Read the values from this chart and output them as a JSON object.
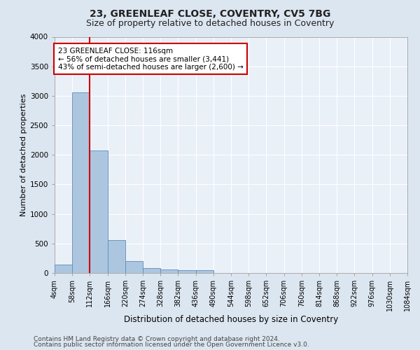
{
  "title1": "23, GREENLEAF CLOSE, COVENTRY, CV5 7BG",
  "title2": "Size of property relative to detached houses in Coventry",
  "xlabel": "Distribution of detached houses by size in Coventry",
  "ylabel": "Number of detached properties",
  "footnote1": "Contains HM Land Registry data © Crown copyright and database right 2024.",
  "footnote2": "Contains public sector information licensed under the Open Government Licence v3.0.",
  "bar_values": [
    140,
    3060,
    2070,
    560,
    200,
    80,
    55,
    45,
    45,
    0,
    0,
    0,
    0,
    0,
    0,
    0,
    0,
    0,
    0,
    0
  ],
  "tick_labels": [
    "4sqm",
    "58sqm",
    "112sqm",
    "166sqm",
    "220sqm",
    "274sqm",
    "328sqm",
    "382sqm",
    "436sqm",
    "490sqm",
    "544sqm",
    "598sqm",
    "652sqm",
    "706sqm",
    "760sqm",
    "814sqm",
    "868sqm",
    "922sqm",
    "976sqm",
    "1030sqm",
    "1084sqm"
  ],
  "bar_color": "#adc6e0",
  "bar_edge_color": "#5b8db8",
  "vline_x": 2.0,
  "vline_color": "#cc0000",
  "annotation_text": "23 GREENLEAF CLOSE: 116sqm\n← 56% of detached houses are smaller (3,441)\n43% of semi-detached houses are larger (2,600) →",
  "annotation_box_color": "#cc0000",
  "bg_color": "#dce6f0",
  "plot_bg_color": "#eaf0f8",
  "ylim": [
    0,
    4000
  ],
  "yticks": [
    0,
    500,
    1000,
    1500,
    2000,
    2500,
    3000,
    3500,
    4000
  ],
  "title1_fontsize": 10,
  "title2_fontsize": 9,
  "ylabel_fontsize": 8,
  "xlabel_fontsize": 8.5,
  "tick_fontsize": 7,
  "footnote_fontsize": 6.5
}
